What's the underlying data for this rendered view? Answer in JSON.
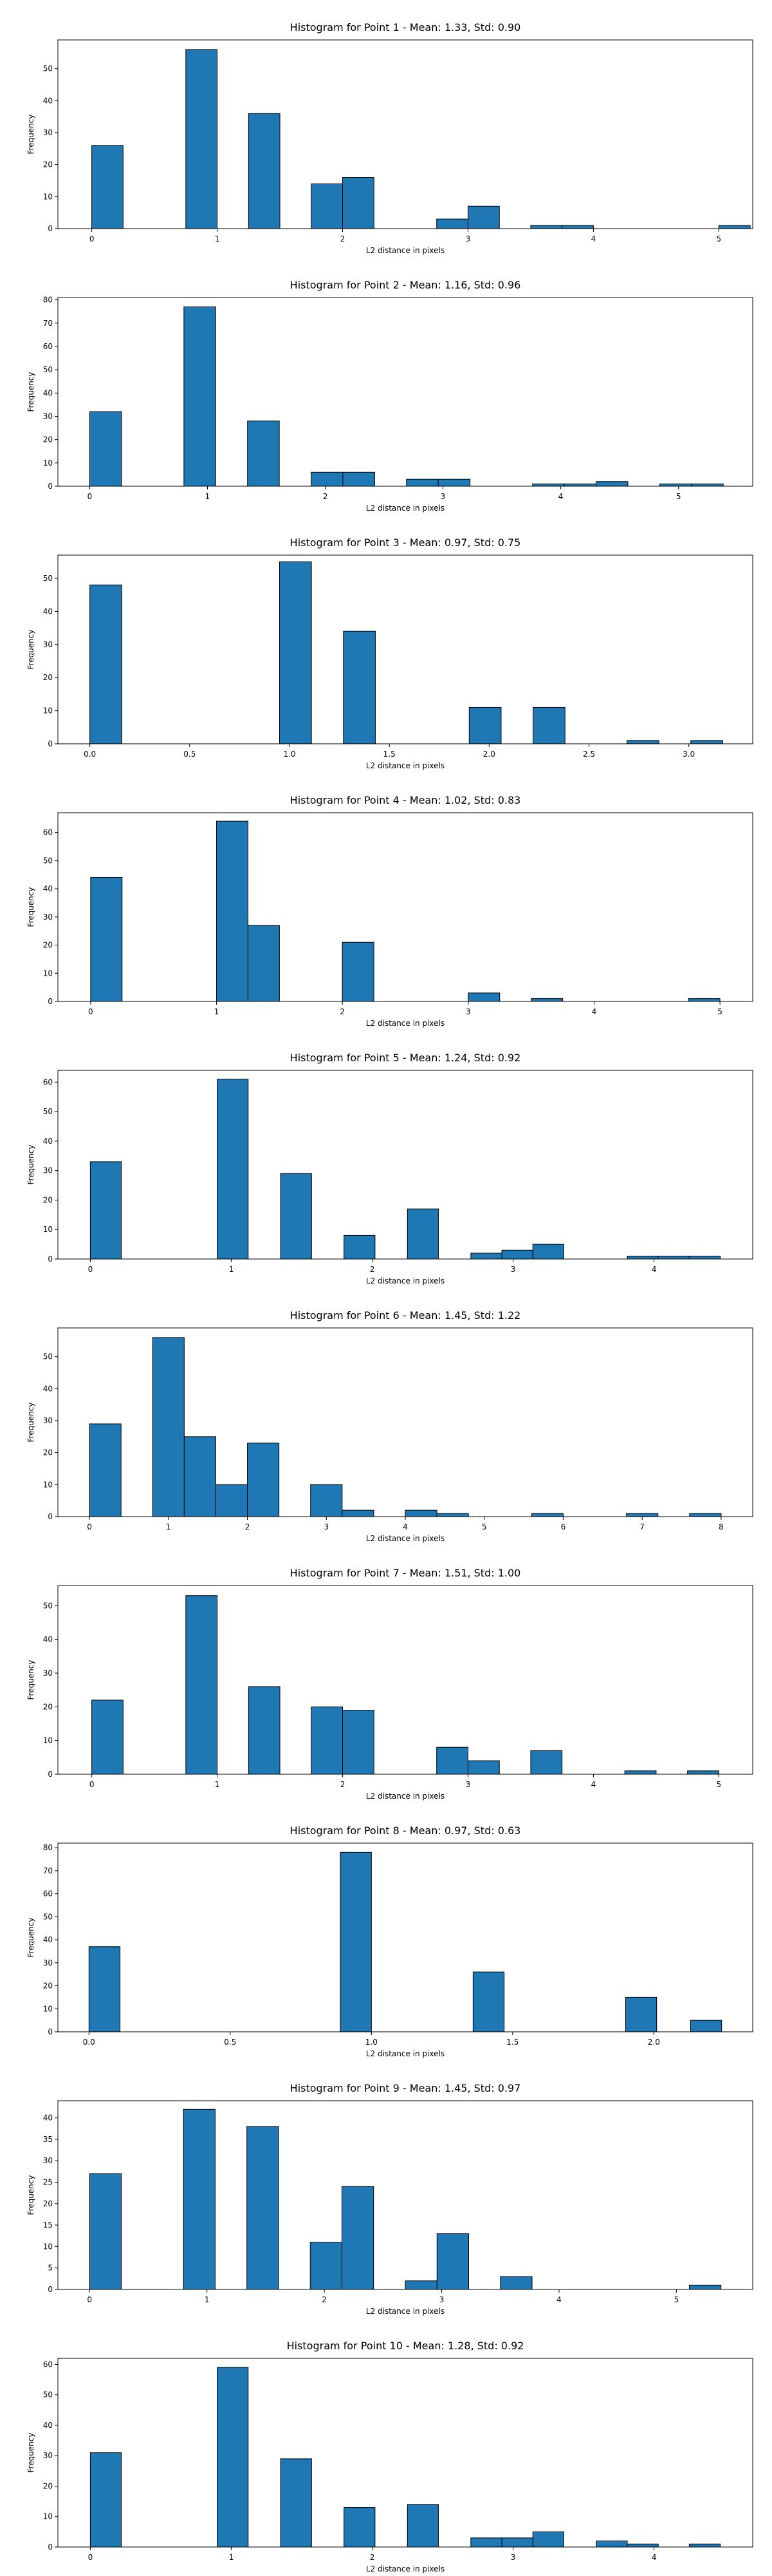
{
  "chart_data": [
    {
      "type": "bar",
      "title": "Histogram for Point 1 - Mean: 1.33, Std: 0.90",
      "xlabel": "L2 distance in pixels",
      "ylabel": "Frequency",
      "xlim": [
        -0.27,
        5.27
      ],
      "ylim": [
        0,
        59
      ],
      "xticks": [
        0,
        1,
        2,
        3,
        4,
        5
      ],
      "xtick_labels": [
        "0",
        "1",
        "2",
        "3",
        "4",
        "5"
      ],
      "yticks": [
        0,
        10,
        20,
        30,
        40,
        50
      ],
      "bars": [
        {
          "x0": 0.0,
          "x1": 0.25,
          "value": 26
        },
        {
          "x0": 0.75,
          "x1": 1.0,
          "value": 56
        },
        {
          "x0": 1.25,
          "x1": 1.5,
          "value": 36
        },
        {
          "x0": 1.75,
          "x1": 2.0,
          "value": 14
        },
        {
          "x0": 2.0,
          "x1": 2.25,
          "value": 16
        },
        {
          "x0": 2.75,
          "x1": 3.0,
          "value": 3
        },
        {
          "x0": 3.0,
          "x1": 3.25,
          "value": 7
        },
        {
          "x0": 3.5,
          "x1": 3.75,
          "value": 1
        },
        {
          "x0": 3.75,
          "x1": 4.0,
          "value": 1
        },
        {
          "x0": 5.0,
          "x1": 5.25,
          "value": 1
        }
      ]
    },
    {
      "type": "bar",
      "title": "Histogram for Point 2 - Mean: 1.16, Std: 0.96",
      "xlabel": "L2 distance in pixels",
      "ylabel": "Frequency",
      "xlim": [
        -0.27,
        5.63
      ],
      "ylim": [
        0,
        81
      ],
      "xticks": [
        0,
        1,
        2,
        3,
        4,
        5
      ],
      "xtick_labels": [
        "0",
        "1",
        "2",
        "3",
        "4",
        "5"
      ],
      "yticks": [
        0,
        10,
        20,
        30,
        40,
        50,
        60,
        70,
        80
      ],
      "bars": [
        {
          "x0": 0.0,
          "x1": 0.27,
          "value": 32
        },
        {
          "x0": 0.8,
          "x1": 1.07,
          "value": 77
        },
        {
          "x0": 1.34,
          "x1": 1.61,
          "value": 28
        },
        {
          "x0": 1.88,
          "x1": 2.15,
          "value": 6
        },
        {
          "x0": 2.15,
          "x1": 2.42,
          "value": 6
        },
        {
          "x0": 2.69,
          "x1": 2.96,
          "value": 3
        },
        {
          "x0": 2.96,
          "x1": 3.23,
          "value": 3
        },
        {
          "x0": 3.76,
          "x1": 4.03,
          "value": 1
        },
        {
          "x0": 4.03,
          "x1": 4.3,
          "value": 1
        },
        {
          "x0": 4.3,
          "x1": 4.57,
          "value": 2
        },
        {
          "x0": 4.84,
          "x1": 5.11,
          "value": 1
        },
        {
          "x0": 5.11,
          "x1": 5.38,
          "value": 1
        }
      ]
    },
    {
      "type": "bar",
      "title": "Histogram for Point 3 - Mean: 0.97, Std: 0.75",
      "xlabel": "L2 distance in pixels",
      "ylabel": "Frequency",
      "xlim": [
        -0.16,
        3.32
      ],
      "ylim": [
        0,
        57
      ],
      "xticks": [
        0,
        0.5,
        1.0,
        1.5,
        2.0,
        2.5,
        3.0
      ],
      "xtick_labels": [
        "0.0",
        "0.5",
        "1.0",
        "1.5",
        "2.0",
        "2.5",
        "3.0"
      ],
      "yticks": [
        0,
        10,
        20,
        30,
        40,
        50
      ],
      "bars": [
        {
          "x0": 0.0,
          "x1": 0.16,
          "value": 48
        },
        {
          "x0": 0.95,
          "x1": 1.11,
          "value": 55
        },
        {
          "x0": 1.27,
          "x1": 1.43,
          "value": 34
        },
        {
          "x0": 1.9,
          "x1": 2.06,
          "value": 11
        },
        {
          "x0": 2.22,
          "x1": 2.38,
          "value": 11
        },
        {
          "x0": 2.69,
          "x1": 2.85,
          "value": 1
        },
        {
          "x0": 3.01,
          "x1": 3.17,
          "value": 1
        }
      ]
    },
    {
      "type": "bar",
      "title": "Histogram for Point 4 - Mean: 1.02, Std: 0.83",
      "xlabel": "L2 distance in pixels",
      "ylabel": "Frequency",
      "xlim": [
        -0.26,
        5.26
      ],
      "ylim": [
        0,
        67
      ],
      "xticks": [
        0,
        1,
        2,
        3,
        4,
        5
      ],
      "xtick_labels": [
        "0",
        "1",
        "2",
        "3",
        "4",
        "5"
      ],
      "yticks": [
        0,
        10,
        20,
        30,
        40,
        50,
        60
      ],
      "bars": [
        {
          "x0": 0.0,
          "x1": 0.25,
          "value": 44
        },
        {
          "x0": 1.0,
          "x1": 1.25,
          "value": 64
        },
        {
          "x0": 1.25,
          "x1": 1.5,
          "value": 27
        },
        {
          "x0": 2.0,
          "x1": 2.25,
          "value": 21
        },
        {
          "x0": 3.0,
          "x1": 3.25,
          "value": 3
        },
        {
          "x0": 3.5,
          "x1": 3.75,
          "value": 1
        },
        {
          "x0": 4.75,
          "x1": 5.0,
          "value": 1
        }
      ]
    },
    {
      "type": "bar",
      "title": "Histogram for Point 5 - Mean: 1.24, Std: 0.92",
      "xlabel": "L2 distance in pixels",
      "ylabel": "Frequency",
      "xlim": [
        -0.23,
        4.7
      ],
      "ylim": [
        0,
        64
      ],
      "xticks": [
        0,
        1,
        2,
        3,
        4
      ],
      "xtick_labels": [
        "0",
        "1",
        "2",
        "3",
        "4"
      ],
      "yticks": [
        0,
        10,
        20,
        30,
        40,
        50,
        60
      ],
      "bars": [
        {
          "x0": 0.0,
          "x1": 0.22,
          "value": 33
        },
        {
          "x0": 0.9,
          "x1": 1.12,
          "value": 61
        },
        {
          "x0": 1.35,
          "x1": 1.57,
          "value": 29
        },
        {
          "x0": 1.8,
          "x1": 2.02,
          "value": 8
        },
        {
          "x0": 2.25,
          "x1": 2.47,
          "value": 17
        },
        {
          "x0": 2.7,
          "x1": 2.92,
          "value": 2
        },
        {
          "x0": 2.92,
          "x1": 3.14,
          "value": 3
        },
        {
          "x0": 3.14,
          "x1": 3.36,
          "value": 5
        },
        {
          "x0": 3.81,
          "x1": 4.03,
          "value": 1
        },
        {
          "x0": 4.03,
          "x1": 4.25,
          "value": 1
        },
        {
          "x0": 4.25,
          "x1": 4.47,
          "value": 1
        }
      ]
    },
    {
      "type": "bar",
      "title": "Histogram for Point 6 - Mean: 1.45, Std: 1.22",
      "xlabel": "L2 distance in pixels",
      "ylabel": "Frequency",
      "xlim": [
        -0.4,
        8.4
      ],
      "ylim": [
        0,
        59
      ],
      "xticks": [
        0,
        1,
        2,
        3,
        4,
        5,
        6,
        7,
        8
      ],
      "xtick_labels": [
        "0",
        "1",
        "2",
        "3",
        "4",
        "5",
        "6",
        "7",
        "8"
      ],
      "yticks": [
        0,
        10,
        20,
        30,
        40,
        50
      ],
      "bars": [
        {
          "x0": 0.0,
          "x1": 0.4,
          "value": 29
        },
        {
          "x0": 0.8,
          "x1": 1.2,
          "value": 56
        },
        {
          "x0": 1.2,
          "x1": 1.6,
          "value": 25
        },
        {
          "x0": 1.6,
          "x1": 2.0,
          "value": 10
        },
        {
          "x0": 2.0,
          "x1": 2.4,
          "value": 23
        },
        {
          "x0": 2.8,
          "x1": 3.2,
          "value": 10
        },
        {
          "x0": 3.2,
          "x1": 3.6,
          "value": 2
        },
        {
          "x0": 4.0,
          "x1": 4.4,
          "value": 2
        },
        {
          "x0": 4.4,
          "x1": 4.8,
          "value": 1
        },
        {
          "x0": 5.6,
          "x1": 6.0,
          "value": 1
        },
        {
          "x0": 6.8,
          "x1": 7.2,
          "value": 1
        },
        {
          "x0": 7.6,
          "x1": 8.0,
          "value": 1
        }
      ]
    },
    {
      "type": "bar",
      "title": "Histogram for Point 7 - Mean: 1.51, Std: 1.00",
      "xlabel": "L2 distance in pixels",
      "ylabel": "Frequency",
      "xlim": [
        -0.27,
        5.27
      ],
      "ylim": [
        0,
        56
      ],
      "xticks": [
        0,
        1,
        2,
        3,
        4,
        5
      ],
      "xtick_labels": [
        "0",
        "1",
        "2",
        "3",
        "4",
        "5"
      ],
      "yticks": [
        0,
        10,
        20,
        30,
        40,
        50
      ],
      "bars": [
        {
          "x0": 0.0,
          "x1": 0.25,
          "value": 22
        },
        {
          "x0": 0.75,
          "x1": 1.0,
          "value": 53
        },
        {
          "x0": 1.25,
          "x1": 1.5,
          "value": 26
        },
        {
          "x0": 1.75,
          "x1": 2.0,
          "value": 20
        },
        {
          "x0": 2.0,
          "x1": 2.25,
          "value": 19
        },
        {
          "x0": 2.75,
          "x1": 3.0,
          "value": 8
        },
        {
          "x0": 3.0,
          "x1": 3.25,
          "value": 4
        },
        {
          "x0": 3.5,
          "x1": 3.75,
          "value": 7
        },
        {
          "x0": 4.25,
          "x1": 4.5,
          "value": 1
        },
        {
          "x0": 4.75,
          "x1": 5.0,
          "value": 1
        }
      ]
    },
    {
      "type": "bar",
      "title": "Histogram for Point 8 - Mean: 0.97, Std: 0.63",
      "xlabel": "L2 distance in pixels",
      "ylabel": "Frequency",
      "xlim": [
        -0.11,
        2.35
      ],
      "ylim": [
        0,
        82
      ],
      "xticks": [
        0,
        0.5,
        1.0,
        1.5,
        2.0
      ],
      "xtick_labels": [
        "0.0",
        "0.5",
        "1.0",
        "1.5",
        "2.0"
      ],
      "yticks": [
        0,
        10,
        20,
        30,
        40,
        50,
        60,
        70,
        80
      ],
      "bars": [
        {
          "x0": 0.0,
          "x1": 0.11,
          "value": 37
        },
        {
          "x0": 0.89,
          "x1": 1.0,
          "value": 78
        },
        {
          "x0": 1.36,
          "x1": 1.47,
          "value": 26
        },
        {
          "x0": 1.9,
          "x1": 2.01,
          "value": 15
        },
        {
          "x0": 2.13,
          "x1": 2.24,
          "value": 5
        }
      ]
    },
    {
      "type": "bar",
      "title": "Histogram for Point 9 - Mean: 1.45, Std: 0.97",
      "xlabel": "L2 distance in pixels",
      "ylabel": "Frequency",
      "xlim": [
        -0.27,
        5.65
      ],
      "ylim": [
        0,
        44
      ],
      "xticks": [
        0,
        1,
        2,
        3,
        4,
        5
      ],
      "xtick_labels": [
        "0",
        "1",
        "2",
        "3",
        "4",
        "5"
      ],
      "yticks": [
        0,
        5,
        10,
        15,
        20,
        25,
        30,
        35,
        40
      ],
      "bars": [
        {
          "x0": 0.0,
          "x1": 0.27,
          "value": 27
        },
        {
          "x0": 0.8,
          "x1": 1.07,
          "value": 42
        },
        {
          "x0": 1.34,
          "x1": 1.61,
          "value": 38
        },
        {
          "x0": 1.88,
          "x1": 2.15,
          "value": 11
        },
        {
          "x0": 2.15,
          "x1": 2.42,
          "value": 24
        },
        {
          "x0": 2.69,
          "x1": 2.96,
          "value": 2
        },
        {
          "x0": 2.96,
          "x1": 3.23,
          "value": 13
        },
        {
          "x0": 3.5,
          "x1": 3.77,
          "value": 3
        },
        {
          "x0": 5.11,
          "x1": 5.38,
          "value": 1
        }
      ]
    },
    {
      "type": "bar",
      "title": "Histogram for Point 10 - Mean: 1.28, Std: 0.92",
      "xlabel": "L2 distance in pixels",
      "ylabel": "Frequency",
      "xlim": [
        -0.23,
        4.7
      ],
      "ylim": [
        0,
        62
      ],
      "xticks": [
        0,
        1,
        2,
        3,
        4
      ],
      "xtick_labels": [
        "0",
        "1",
        "2",
        "3",
        "4"
      ],
      "yticks": [
        0,
        10,
        20,
        30,
        40,
        50,
        60
      ],
      "bars": [
        {
          "x0": 0.0,
          "x1": 0.22,
          "value": 31
        },
        {
          "x0": 0.9,
          "x1": 1.12,
          "value": 59
        },
        {
          "x0": 1.35,
          "x1": 1.57,
          "value": 29
        },
        {
          "x0": 1.8,
          "x1": 2.02,
          "value": 13
        },
        {
          "x0": 2.25,
          "x1": 2.47,
          "value": 14
        },
        {
          "x0": 2.7,
          "x1": 2.92,
          "value": 3
        },
        {
          "x0": 2.92,
          "x1": 3.14,
          "value": 3
        },
        {
          "x0": 3.14,
          "x1": 3.36,
          "value": 5
        },
        {
          "x0": 3.59,
          "x1": 3.81,
          "value": 2
        },
        {
          "x0": 3.81,
          "x1": 4.03,
          "value": 1
        },
        {
          "x0": 4.25,
          "x1": 4.47,
          "value": 1
        }
      ]
    }
  ],
  "colors": {
    "bar_fill": "#1f77b4",
    "bar_edge": "#000000",
    "axis": "#000000",
    "background": "#ffffff"
  }
}
